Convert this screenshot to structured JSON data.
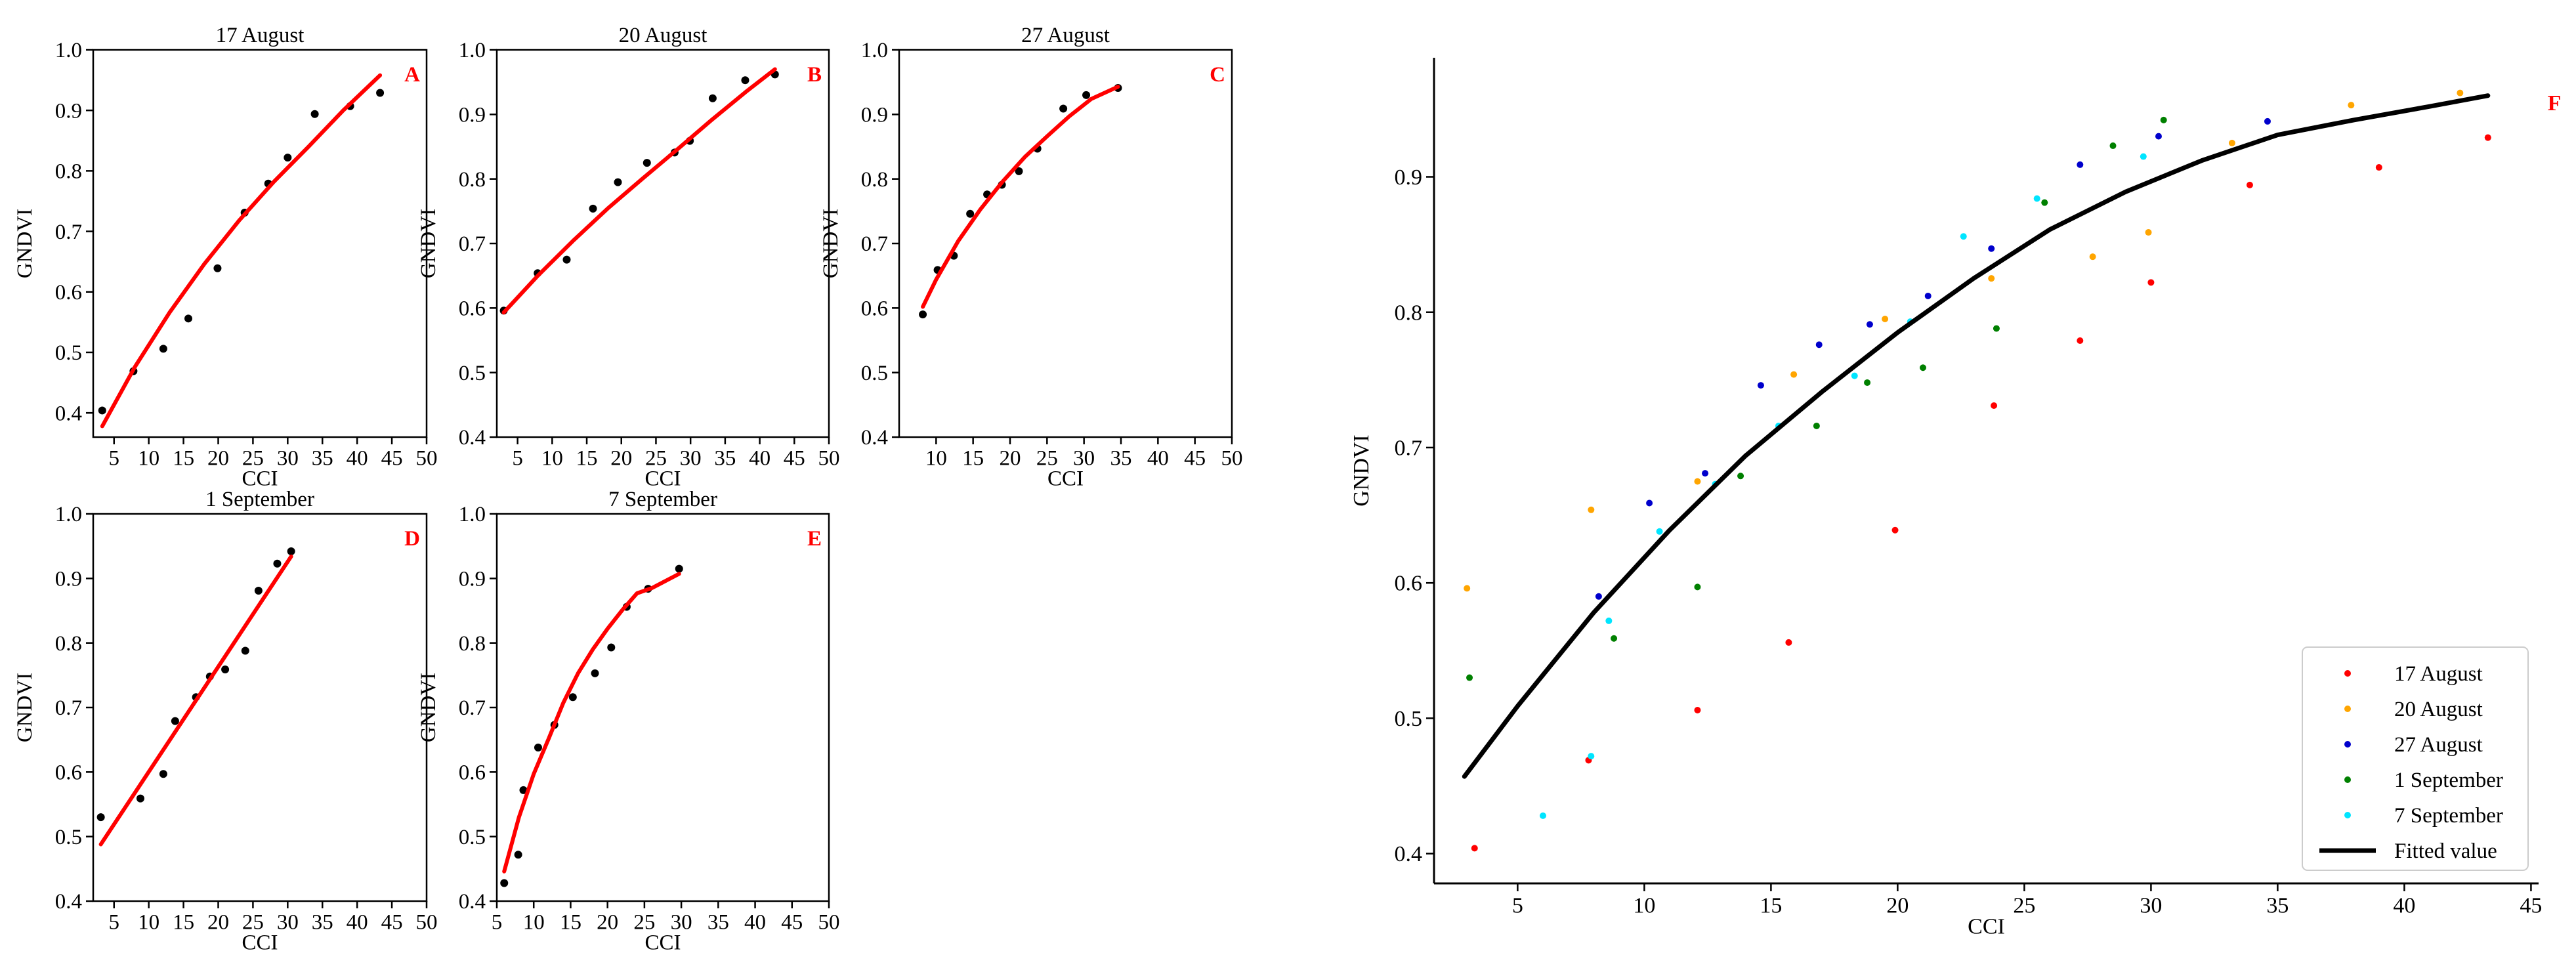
{
  "chart_data": [
    {
      "id": "A",
      "type": "scatter",
      "title": "17 August",
      "panel_label": "A",
      "xlabel": "CCI",
      "ylabel": "GNDVI",
      "xlim": [
        2,
        50
      ],
      "ylim": [
        0.36,
        1.0
      ],
      "xticks": [
        5,
        10,
        15,
        20,
        25,
        30,
        35,
        40,
        45,
        50
      ],
      "yticks": [
        0.4,
        0.5,
        0.6,
        0.7,
        0.8,
        0.9,
        1.0
      ],
      "ytick_labels": [
        "0.4",
        "0.5",
        "0.6",
        "0.7",
        "0.8",
        "0.9",
        "1.0"
      ],
      "series": [
        {
          "kind": "points",
          "color": "#000000",
          "x": [
            3.3,
            7.8,
            12.1,
            15.7,
            19.9,
            23.8,
            27.2,
            30.0,
            33.9,
            39.0,
            43.3
          ],
          "y": [
            0.404,
            0.469,
            0.506,
            0.556,
            0.639,
            0.731,
            0.779,
            0.822,
            0.894,
            0.907,
            0.929
          ]
        },
        {
          "kind": "line",
          "color": "#ff0000",
          "x": [
            3.3,
            8,
            13,
            18,
            23,
            28,
            33,
            38,
            43.3
          ],
          "y": [
            0.378,
            0.476,
            0.566,
            0.646,
            0.718,
            0.782,
            0.84,
            0.9,
            0.958
          ]
        }
      ]
    },
    {
      "id": "B",
      "type": "scatter",
      "title": "20 August",
      "panel_label": "B",
      "xlabel": "CCI",
      "ylabel": "GNDVI",
      "xlim": [
        2,
        50
      ],
      "ylim": [
        0.4,
        1.0
      ],
      "xticks": [
        5,
        10,
        15,
        20,
        25,
        30,
        35,
        40,
        45,
        50
      ],
      "yticks": [
        0.4,
        0.5,
        0.6,
        0.7,
        0.8,
        0.9,
        1.0
      ],
      "ytick_labels": [
        "0.4",
        "0.5",
        "0.6",
        "0.7",
        "0.8",
        "0.9",
        "1.0"
      ],
      "series": [
        {
          "kind": "points",
          "color": "#000000",
          "x": [
            3.0,
            7.9,
            12.1,
            15.9,
            19.5,
            23.7,
            27.7,
            29.9,
            33.2,
            37.9,
            42.2
          ],
          "y": [
            0.596,
            0.654,
            0.675,
            0.754,
            0.795,
            0.825,
            0.841,
            0.859,
            0.925,
            0.953,
            0.962
          ]
        },
        {
          "kind": "line",
          "color": "#ff0000",
          "x": [
            3,
            8,
            13,
            18,
            23,
            28,
            33,
            38,
            42.2
          ],
          "y": [
            0.593,
            0.651,
            0.704,
            0.754,
            0.8,
            0.845,
            0.891,
            0.935,
            0.97
          ]
        }
      ]
    },
    {
      "id": "C",
      "type": "scatter",
      "title": "27 August",
      "panel_label": "C",
      "xlabel": "CCI",
      "ylabel": "GNDVI",
      "xlim": [
        5,
        50
      ],
      "ylim": [
        0.4,
        1.0
      ],
      "xticks": [
        10,
        15,
        20,
        25,
        30,
        35,
        40,
        45,
        50
      ],
      "yticks": [
        0.4,
        0.5,
        0.6,
        0.7,
        0.8,
        0.9,
        1.0
      ],
      "ytick_labels": [
        "0.4",
        "0.5",
        "0.6",
        "0.7",
        "0.8",
        "0.9",
        "1.0"
      ],
      "series": [
        {
          "kind": "points",
          "color": "#000000",
          "x": [
            8.2,
            10.2,
            12.4,
            14.6,
            16.9,
            18.9,
            21.2,
            23.7,
            27.2,
            30.3,
            34.6
          ],
          "y": [
            0.59,
            0.659,
            0.681,
            0.746,
            0.776,
            0.791,
            0.812,
            0.847,
            0.909,
            0.93,
            0.941
          ]
        },
        {
          "kind": "line",
          "color": "#ff0000",
          "x": [
            8.2,
            10,
            13,
            16,
            19,
            22,
            25,
            28,
            31,
            34.6
          ],
          "y": [
            0.602,
            0.644,
            0.704,
            0.753,
            0.796,
            0.834,
            0.866,
            0.897,
            0.924,
            0.943
          ]
        }
      ]
    },
    {
      "id": "D",
      "type": "scatter",
      "title": "1 September",
      "panel_label": "D",
      "xlabel": "CCI",
      "ylabel": "GNDVI",
      "xlim": [
        2,
        50
      ],
      "ylim": [
        0.4,
        1.0
      ],
      "xticks": [
        5,
        10,
        15,
        20,
        25,
        30,
        35,
        40,
        45,
        50
      ],
      "yticks": [
        0.4,
        0.5,
        0.6,
        0.7,
        0.8,
        0.9,
        1.0
      ],
      "ytick_labels": [
        "0.4",
        "0.5",
        "0.6",
        "0.7",
        "0.8",
        "0.9",
        "1.0"
      ],
      "series": [
        {
          "kind": "points",
          "color": "#000000",
          "x": [
            3.1,
            8.8,
            12.1,
            13.8,
            16.8,
            18.8,
            21.0,
            23.9,
            25.8,
            28.5,
            30.5
          ],
          "y": [
            0.53,
            0.559,
            0.597,
            0.679,
            0.716,
            0.748,
            0.759,
            0.788,
            0.881,
            0.923,
            0.942
          ]
        },
        {
          "kind": "line",
          "color": "#ff0000",
          "x": [
            3.1,
            30.5
          ],
          "y": [
            0.488,
            0.934
          ]
        }
      ]
    },
    {
      "id": "E",
      "type": "scatter",
      "title": "7 September",
      "panel_label": "E",
      "xlabel": "CCI",
      "ylabel": "GNDVI",
      "xlim": [
        5,
        50
      ],
      "ylim": [
        0.4,
        1.0
      ],
      "xticks": [
        5,
        10,
        15,
        20,
        25,
        30,
        35,
        40,
        45,
        50
      ],
      "yticks": [
        0.4,
        0.5,
        0.6,
        0.7,
        0.8,
        0.9,
        1.0
      ],
      "ytick_labels": [
        "0.4",
        "0.5",
        "0.6",
        "0.7",
        "0.8",
        "0.9",
        "1.0"
      ],
      "series": [
        {
          "kind": "points",
          "color": "#000000",
          "x": [
            6.0,
            7.9,
            8.6,
            10.6,
            12.8,
            15.3,
            18.3,
            20.5,
            22.6,
            25.5,
            29.7
          ],
          "y": [
            0.428,
            0.472,
            0.572,
            0.638,
            0.673,
            0.716,
            0.753,
            0.793,
            0.856,
            0.884,
            0.915
          ]
        },
        {
          "kind": "line",
          "color": "#ff0000",
          "x": [
            6.0,
            8,
            10,
            12,
            14,
            16,
            18,
            20,
            22,
            24,
            26,
            29.7
          ],
          "y": [
            0.446,
            0.53,
            0.597,
            0.651,
            0.707,
            0.753,
            0.79,
            0.822,
            0.851,
            0.877,
            0.885,
            0.907
          ]
        }
      ]
    },
    {
      "id": "F",
      "type": "scatter",
      "panel_label": "F",
      "xlabel": "CCI",
      "ylabel": "GNDVI",
      "xlim": [
        1.7,
        45.3
      ],
      "ylim": [
        0.378,
        0.988
      ],
      "xticks": [
        5,
        10,
        15,
        20,
        25,
        30,
        35,
        40,
        45
      ],
      "yticks": [
        0.4,
        0.5,
        0.6,
        0.7,
        0.8,
        0.9
      ],
      "ytick_labels": [
        "0.4",
        "0.5",
        "0.6",
        "0.7",
        "0.8",
        "0.9"
      ],
      "legend_position": "bottom-right",
      "series": [
        {
          "kind": "points",
          "name": "17 August",
          "color": "#ff0000",
          "x": [
            3.3,
            7.8,
            12.1,
            15.7,
            19.9,
            23.8,
            27.2,
            30.0,
            33.9,
            39.0,
            43.3
          ],
          "y": [
            0.404,
            0.469,
            0.506,
            0.556,
            0.639,
            0.731,
            0.779,
            0.822,
            0.894,
            0.907,
            0.929
          ]
        },
        {
          "kind": "points",
          "name": "20 August",
          "color": "#ffa500",
          "x": [
            3.0,
            7.9,
            12.1,
            15.9,
            19.5,
            23.7,
            27.7,
            29.9,
            33.2,
            37.9,
            42.2
          ],
          "y": [
            0.596,
            0.654,
            0.675,
            0.754,
            0.795,
            0.825,
            0.841,
            0.859,
            0.925,
            0.953,
            0.962
          ]
        },
        {
          "kind": "points",
          "name": "27 August",
          "color": "#0000cc",
          "x": [
            8.2,
            10.2,
            12.4,
            14.6,
            16.9,
            18.9,
            21.2,
            23.7,
            27.2,
            30.3,
            34.6
          ],
          "y": [
            0.59,
            0.659,
            0.681,
            0.746,
            0.776,
            0.791,
            0.812,
            0.847,
            0.909,
            0.93,
            0.941
          ]
        },
        {
          "kind": "points",
          "name": "1 September",
          "color": "#008000",
          "x": [
            3.1,
            8.8,
            12.1,
            13.8,
            16.8,
            18.8,
            21.0,
            23.9,
            25.8,
            28.5,
            30.5
          ],
          "y": [
            0.53,
            0.559,
            0.597,
            0.679,
            0.716,
            0.748,
            0.759,
            0.788,
            0.881,
            0.923,
            0.942
          ]
        },
        {
          "kind": "points",
          "name": "7 September",
          "color": "#00e5ff",
          "x": [
            6.0,
            7.9,
            8.6,
            10.6,
            12.8,
            15.3,
            18.3,
            20.5,
            22.6,
            25.5,
            29.7
          ],
          "y": [
            0.428,
            0.472,
            0.572,
            0.638,
            0.673,
            0.716,
            0.753,
            0.793,
            0.856,
            0.884,
            0.915
          ]
        },
        {
          "kind": "line",
          "name": "Fitted value",
          "color": "#000000",
          "x": [
            2.9,
            5,
            8,
            11,
            14,
            17,
            20,
            23,
            26,
            29,
            32,
            35,
            38,
            41,
            43.3
          ],
          "y": [
            0.457,
            0.509,
            0.578,
            0.639,
            0.694,
            0.741,
            0.785,
            0.825,
            0.861,
            0.889,
            0.912,
            0.931,
            0.942,
            0.952,
            0.96
          ]
        }
      ]
    }
  ]
}
